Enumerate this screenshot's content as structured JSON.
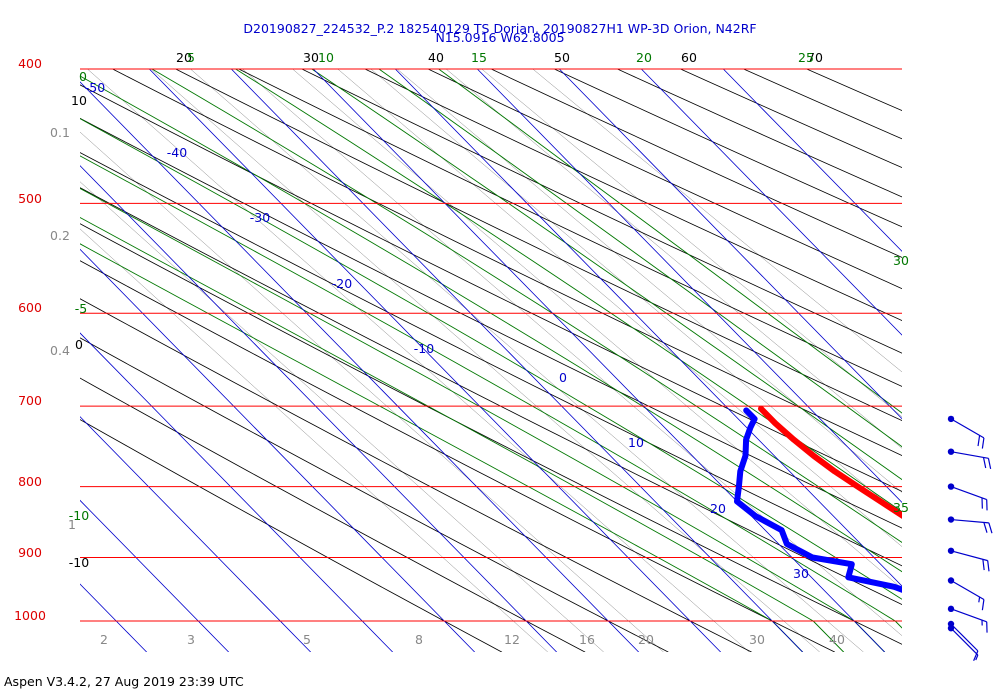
{
  "title_line1": "D20190827_224532_P.2 182540129 TS Dorian, 20190827H1 WP-3D Orion, N42RF",
  "title_line2": "N15.0916 W62.8005",
  "footer": "Aspen V3.4.2, 27 Aug 2019  23:39 UTC",
  "colors": {
    "isobar": "#ff0000",
    "pressure_label": "#dd0000",
    "isotherm": "#0000cc",
    "dry_adiabat": "#000000",
    "moist_adiabat": "#007700",
    "mixing_ratio": "#888888",
    "temperature_trace": "#ff0000",
    "dewpoint_trace": "#0000ff",
    "wind_barb": "#0000cc"
  },
  "chart_data": {
    "type": "skew-t",
    "pressure_axis": {
      "range_hpa": [
        1050,
        400
      ],
      "log_scale": true,
      "ticks": [
        "400",
        "500",
        "600",
        "700",
        "800",
        "900",
        "1000"
      ]
    },
    "isotherm_labels": [
      "-50",
      "-40",
      "-30",
      "-20",
      "-10",
      "0",
      "10",
      "20",
      "30"
    ],
    "dry_adiabat_labels": {
      "top": [
        "20",
        "30",
        "40",
        "50",
        "60",
        "70"
      ],
      "left": [
        "10",
        "0",
        "-10"
      ]
    },
    "moist_adiabat_labels": {
      "top": [
        "5",
        "10",
        "15",
        "20",
        "25"
      ],
      "left": [
        "0",
        "-5",
        "-10"
      ],
      "right": [
        "30",
        "35"
      ]
    },
    "mixing_ratio_labels": {
      "bottom": [
        "2",
        "3",
        "5",
        "8",
        "12",
        "16",
        "20",
        "30",
        "40"
      ],
      "left": [
        "0.1",
        "0.2",
        "0.4",
        "1"
      ]
    },
    "series": [
      {
        "type": "temperature",
        "points": [
          [
            703,
            14.0
          ],
          [
            720,
            14.0
          ],
          [
            740,
            14.3
          ],
          [
            760,
            14.8
          ],
          [
            780,
            15.5
          ],
          [
            800,
            16.5
          ],
          [
            820,
            17.5
          ],
          [
            840,
            18.5
          ],
          [
            860,
            19.5
          ],
          [
            880,
            20.5
          ],
          [
            900,
            21.0
          ],
          [
            915,
            21.2
          ],
          [
            930,
            21.8
          ],
          [
            950,
            22.5
          ],
          [
            970,
            23.5
          ],
          [
            985,
            24.0
          ],
          [
            1000,
            24.4
          ],
          [
            1012,
            25.2
          ]
        ]
      },
      {
        "type": "dewpoint",
        "points": [
          [
            705,
            12.0
          ],
          [
            715,
            12.0
          ],
          [
            725,
            10.5
          ],
          [
            740,
            8.5
          ],
          [
            760,
            6.5
          ],
          [
            780,
            4.0
          ],
          [
            800,
            2.0
          ],
          [
            820,
            0.0
          ],
          [
            840,
            0.5
          ],
          [
            860,
            2.0
          ],
          [
            880,
            1.0
          ],
          [
            900,
            2.5
          ],
          [
            910,
            6.5
          ],
          [
            920,
            5.5
          ],
          [
            930,
            4.5
          ],
          [
            945,
            9.0
          ],
          [
            960,
            11.0
          ],
          [
            975,
            13.0
          ],
          [
            990,
            17.0
          ],
          [
            1002,
            19.5
          ],
          [
            1012,
            20.5
          ]
        ]
      }
    ],
    "wind_barbs": [
      {
        "p": 715,
        "speed_kt": 20,
        "dir_deg": 120
      },
      {
        "p": 755,
        "speed_kt": 20,
        "dir_deg": 100
      },
      {
        "p": 800,
        "speed_kt": 20,
        "dir_deg": 110
      },
      {
        "p": 845,
        "speed_kt": 20,
        "dir_deg": 95
      },
      {
        "p": 890,
        "speed_kt": 20,
        "dir_deg": 105
      },
      {
        "p": 935,
        "speed_kt": 15,
        "dir_deg": 120
      },
      {
        "p": 980,
        "speed_kt": 15,
        "dir_deg": 110
      },
      {
        "p": 1005,
        "speed_kt": 10,
        "dir_deg": 135
      },
      {
        "p": 1012,
        "speed_kt": 5,
        "dir_deg": 135
      }
    ]
  }
}
